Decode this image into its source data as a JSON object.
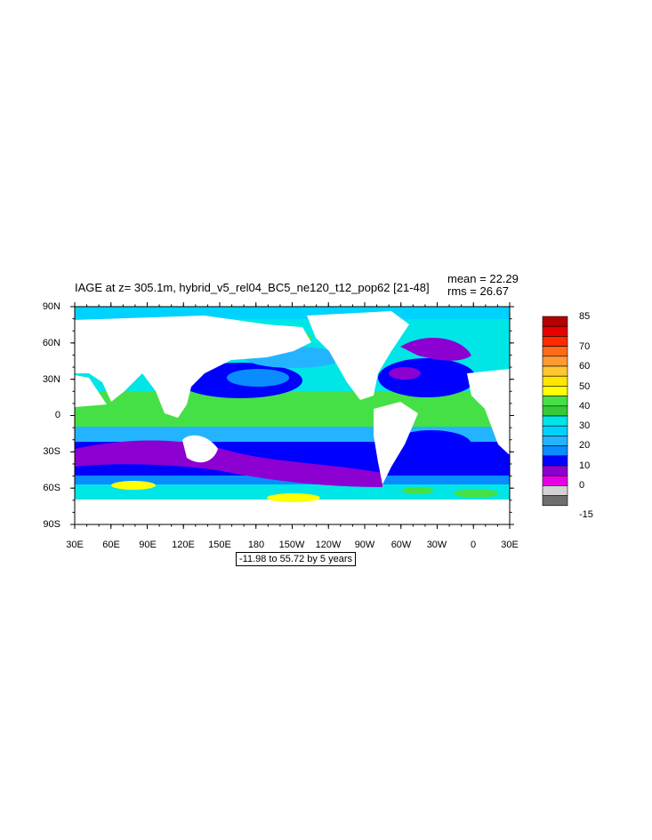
{
  "title": "IAGE at z= 305.1m, hybrid_v5_rel04_BC5_ne120_t12_pop62 [21-48]",
  "stats": {
    "mean": "mean = 22.29",
    "rms": "rms = 26.67"
  },
  "lat_labels": [
    "90N",
    "60N",
    "30N",
    "0",
    "30S",
    "60S",
    "90S"
  ],
  "lon_labels": [
    "30E",
    "60E",
    "90E",
    "120E",
    "150E",
    "180",
    "150W",
    "120W",
    "90W",
    "60W",
    "30W",
    "0",
    "30E"
  ],
  "contour_info": "-11.98 to 55.72 by 5 years",
  "colorbar": {
    "labels": [
      "85",
      "70",
      "60",
      "50",
      "40",
      "30",
      "20",
      "10",
      "0",
      "-15"
    ],
    "colors": [
      "#b50000",
      "#e60000",
      "#ff2a00",
      "#ff6a1a",
      "#ff9a33",
      "#ffc733",
      "#ffe600",
      "#ffff00",
      "#45e045",
      "#37c837",
      "#00e6e6",
      "#00d2ff",
      "#24b4ff",
      "#0a8cff",
      "#0000ff",
      "#8c00d2",
      "#e600e6",
      "#d2d2d2",
      "#6e6e6e"
    ]
  },
  "chart_data": {
    "type": "map",
    "variable": "IAGE",
    "depth": "305.1m",
    "case": "hybrid_v5_rel04_BC5_ne120_t12_pop62",
    "years": "21-48",
    "mean": 22.29,
    "rms": 26.67,
    "contour_min": -11.98,
    "contour_max": 55.72,
    "contour_interval": 5,
    "units": "years"
  }
}
